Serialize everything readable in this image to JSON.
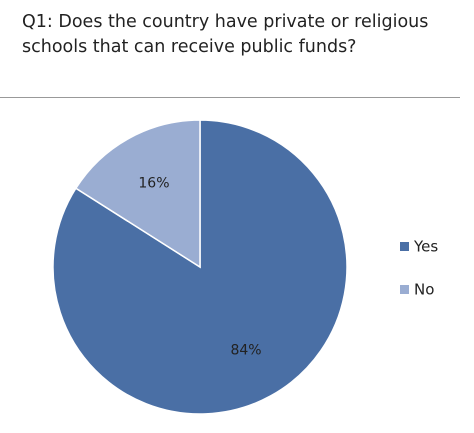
{
  "chart_data": {
    "type": "pie",
    "title": "Q1: Does the country have private or religious schools that can receive public funds?",
    "categories": [
      "Yes",
      "No"
    ],
    "values": [
      84,
      16
    ],
    "value_labels": [
      "84%",
      "16%"
    ],
    "colors": [
      "#4a6fa5",
      "#9aadd2"
    ],
    "legend": "right"
  }
}
